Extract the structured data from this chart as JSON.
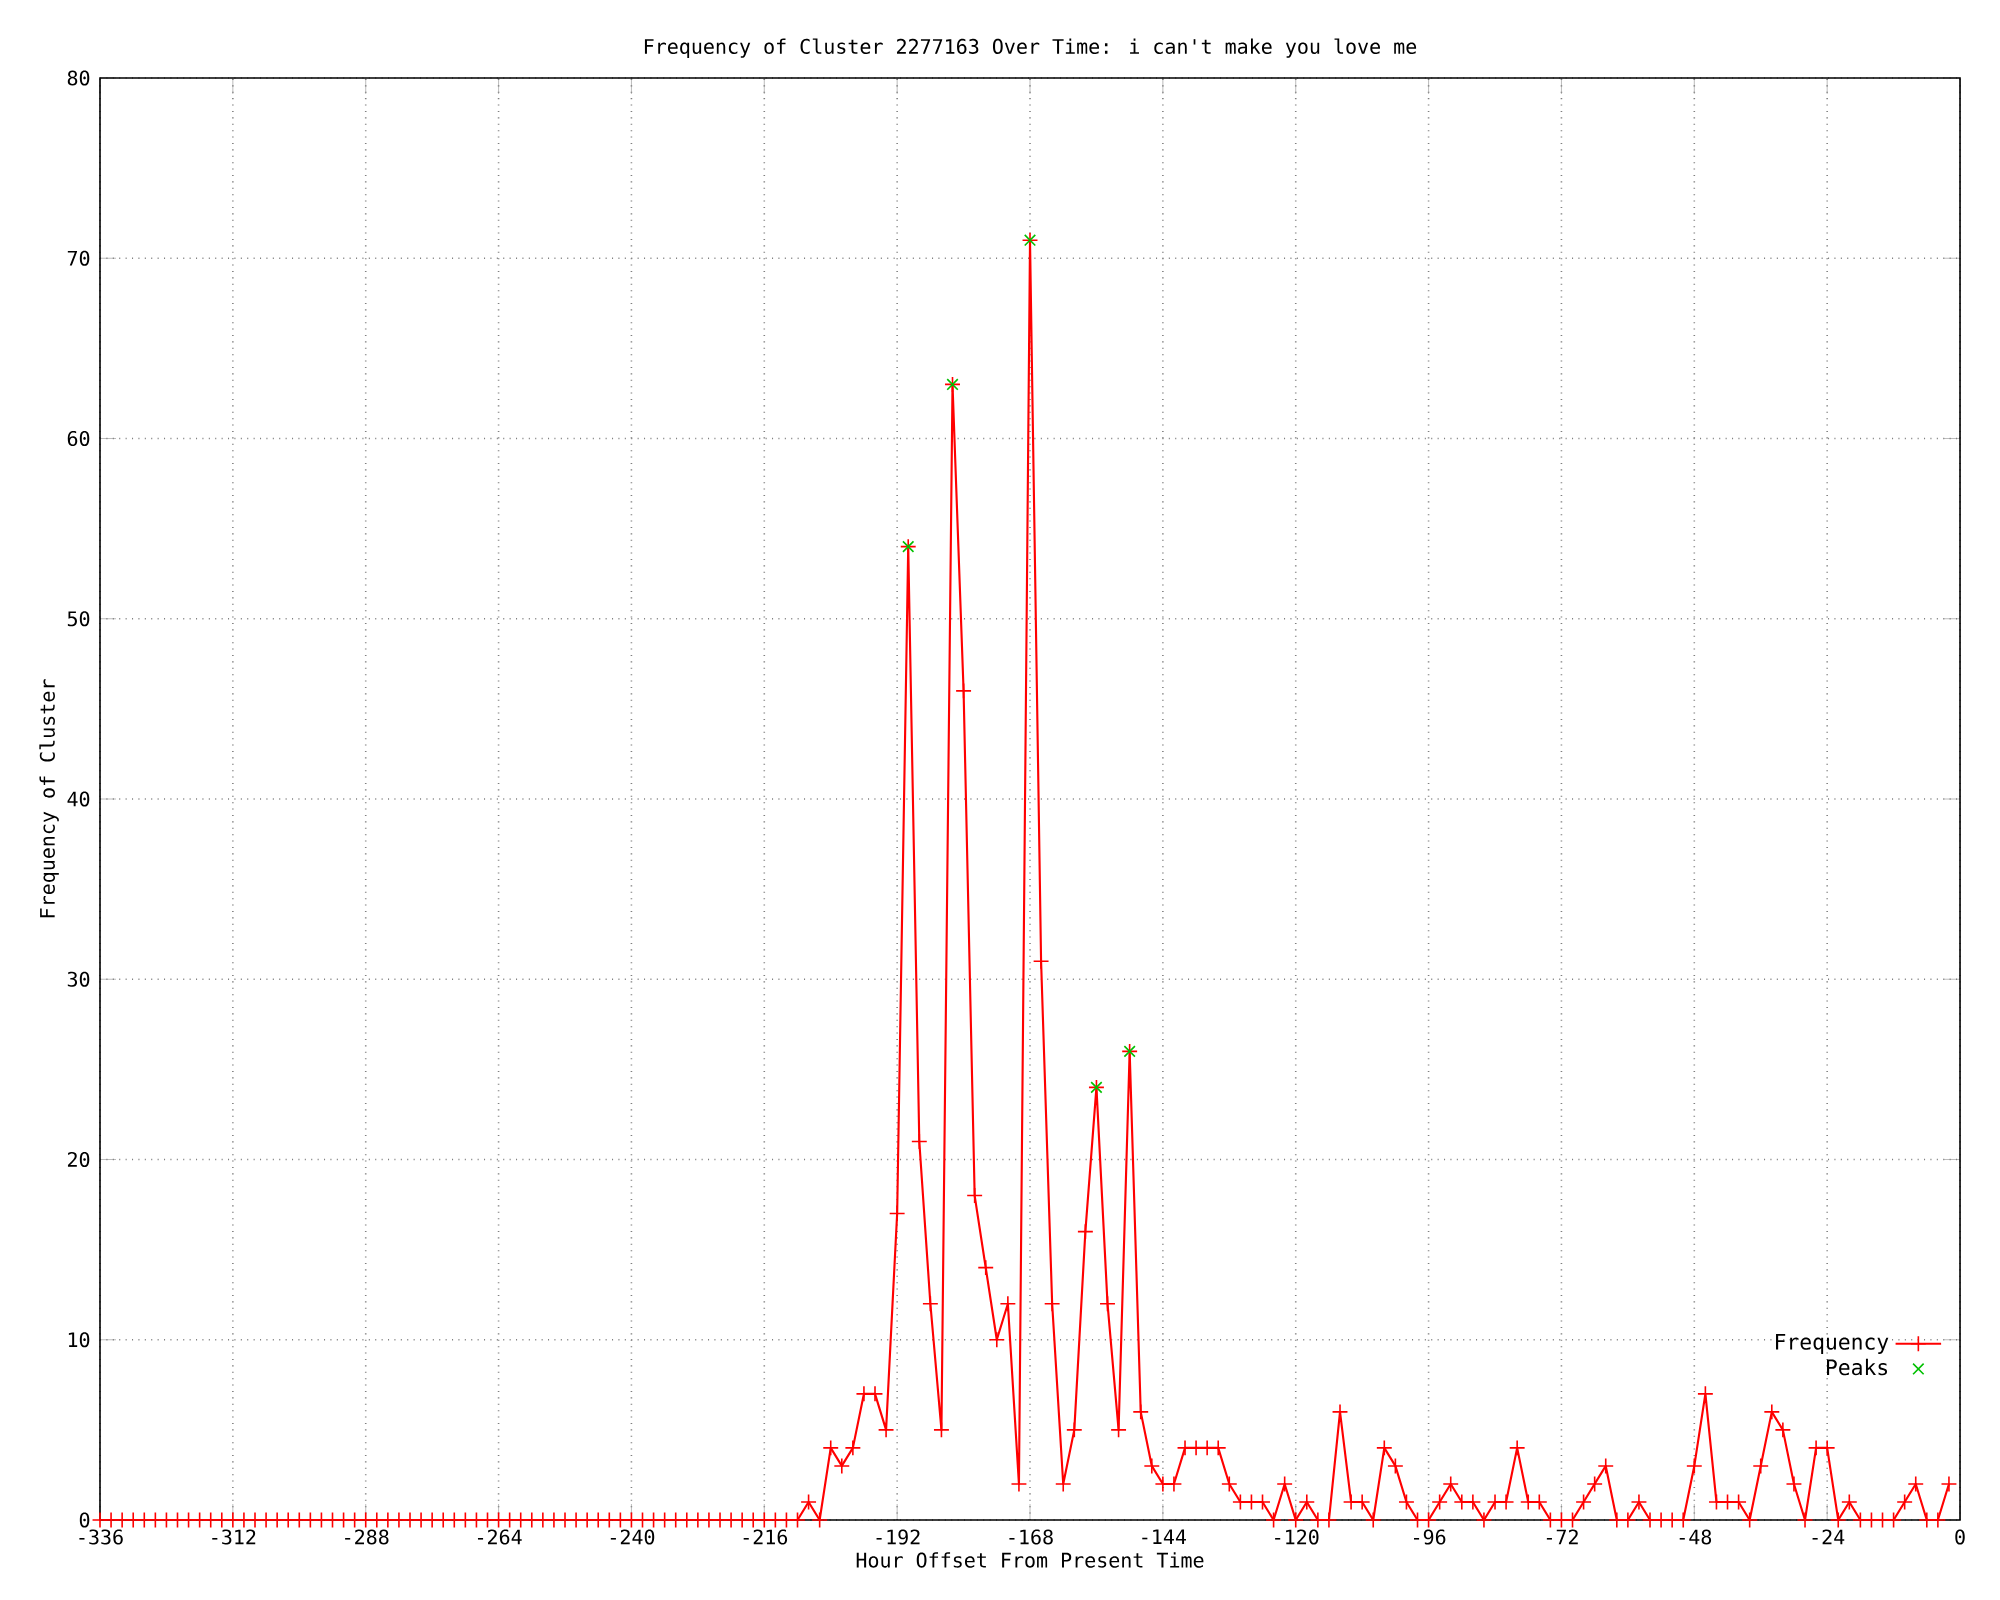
{
  "chart_data": {
    "type": "line",
    "title": "Frequency of Cluster 2277163 Over Time: i can't make you love me",
    "xlabel": "Hour Offset From Present Time",
    "ylabel": "Frequency of Cluster",
    "xlim": [
      -336,
      0
    ],
    "xticks": [
      -336,
      -312,
      -288,
      -264,
      -240,
      -216,
      -192,
      -168,
      -144,
      -120,
      -96,
      -72,
      -48,
      -24,
      0
    ],
    "ylim": [
      0,
      80
    ],
    "yticks": [
      0,
      10,
      20,
      30,
      40,
      50,
      60,
      70,
      80
    ],
    "grid": true,
    "legend": "bottom right",
    "series": [
      {
        "name": "Frequency",
        "color": "#ff0000",
        "marker": "plus",
        "x": [
          -336,
          -334,
          -332,
          -330,
          -328,
          -326,
          -324,
          -322,
          -320,
          -318,
          -316,
          -314,
          -312,
          -310,
          -308,
          -306,
          -304,
          -302,
          -300,
          -298,
          -296,
          -294,
          -292,
          -290,
          -288,
          -286,
          -284,
          -282,
          -280,
          -278,
          -276,
          -274,
          -272,
          -270,
          -268,
          -266,
          -264,
          -262,
          -260,
          -258,
          -256,
          -254,
          -252,
          -250,
          -248,
          -246,
          -244,
          -242,
          -240,
          -238,
          -236,
          -234,
          -232,
          -230,
          -228,
          -226,
          -224,
          -222,
          -220,
          -218,
          -216,
          -214,
          -212,
          -210,
          -208,
          -206,
          -204,
          -202,
          -200,
          -198,
          -196,
          -194,
          -192,
          -190,
          -188,
          -186,
          -184,
          -182,
          -180,
          -178,
          -176,
          -174,
          -172,
          -170,
          -168,
          -166,
          -164,
          -162,
          -160,
          -158,
          -156,
          -154,
          -152,
          -150,
          -148,
          -146,
          -144,
          -142,
          -140,
          -138,
          -136,
          -134,
          -132,
          -130,
          -128,
          -126,
          -124,
          -122,
          -120,
          -118,
          -116,
          -114,
          -112,
          -110,
          -108,
          -106,
          -104,
          -102,
          -100,
          -98,
          -96,
          -94,
          -92,
          -90,
          -88,
          -86,
          -84,
          -82,
          -80,
          -78,
          -76,
          -74,
          -72,
          -70,
          -68,
          -66,
          -64,
          -62,
          -60,
          -58,
          -56,
          -54,
          -52,
          -50,
          -48,
          -46,
          -44,
          -42,
          -40,
          -38,
          -36,
          -34,
          -32,
          -30,
          -28,
          -26,
          -24,
          -22,
          -20,
          -18,
          -16,
          -14,
          -12,
          -10,
          -8,
          -6,
          -4,
          -2
        ],
        "values": [
          0,
          0,
          0,
          0,
          0,
          0,
          0,
          0,
          0,
          0,
          0,
          0,
          0,
          0,
          0,
          0,
          0,
          0,
          0,
          0,
          0,
          0,
          0,
          0,
          0,
          0,
          0,
          0,
          0,
          0,
          0,
          0,
          0,
          0,
          0,
          0,
          0,
          0,
          0,
          0,
          0,
          0,
          0,
          0,
          0,
          0,
          0,
          0,
          0,
          0,
          0,
          0,
          0,
          0,
          0,
          0,
          0,
          0,
          0,
          0,
          0,
          0,
          0,
          0,
          1,
          0,
          4,
          3,
          4,
          7,
          7,
          5,
          17,
          54,
          21,
          12,
          5,
          63,
          46,
          18,
          14,
          10,
          12,
          2,
          71,
          31,
          12,
          2,
          5,
          16,
          24,
          12,
          5,
          26,
          6,
          3,
          2,
          2,
          4,
          4,
          4,
          4,
          2,
          1,
          1,
          1,
          0,
          2,
          0,
          1,
          0,
          0,
          6,
          1,
          1,
          0,
          4,
          3,
          1,
          0,
          0,
          1,
          2,
          1,
          1,
          0,
          1,
          1,
          4,
          1,
          1,
          0,
          0,
          0,
          1,
          2,
          3,
          0,
          0,
          1,
          0,
          0,
          0,
          0,
          3,
          7,
          1,
          1,
          1,
          0,
          3,
          6,
          5,
          2,
          0,
          4,
          4,
          0,
          1,
          0,
          0,
          0,
          0,
          1,
          2,
          0,
          0,
          2
        ]
      },
      {
        "name": "Peaks",
        "type": "scatter",
        "color": "#00c000",
        "marker": "cross",
        "x": [
          -190,
          -182,
          -168,
          -156,
          -150
        ],
        "values": [
          54,
          63,
          71,
          24,
          26
        ]
      }
    ]
  }
}
